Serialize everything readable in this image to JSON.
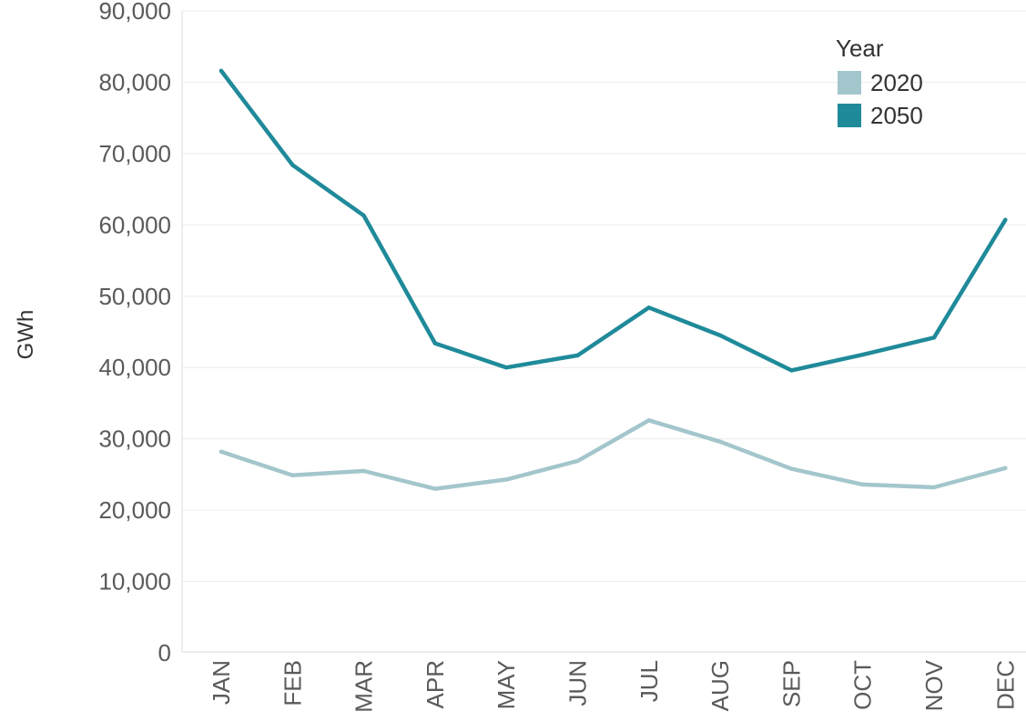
{
  "chart_data": {
    "type": "line",
    "title": "",
    "xlabel": "",
    "ylabel": "GWh",
    "categories": [
      "JAN",
      "FEB",
      "MAR",
      "APR",
      "MAY",
      "JUN",
      "JUL",
      "AUG",
      "SEP",
      "OCT",
      "NOV",
      "DEC"
    ],
    "ylim": [
      0,
      90000
    ],
    "yticks": [
      0,
      10000,
      20000,
      30000,
      40000,
      50000,
      60000,
      70000,
      80000,
      90000
    ],
    "ytick_labels": [
      "0",
      "10,000",
      "20,000",
      "30,000",
      "40,000",
      "50,000",
      "60,000",
      "70,000",
      "80,000",
      "90,000"
    ],
    "grid": true,
    "legend": {
      "title": "Year",
      "position": "top-right"
    },
    "series": [
      {
        "name": "2020",
        "color": "#a3c6cc",
        "values": [
          28200,
          24900,
          25500,
          23000,
          24300,
          26900,
          32600,
          29600,
          25800,
          23600,
          23200,
          25900
        ]
      },
      {
        "name": "2050",
        "color": "#1f8a9a",
        "values": [
          81600,
          68400,
          61300,
          43400,
          40000,
          41700,
          48400,
          44500,
          39600,
          41800,
          44200,
          60700
        ]
      }
    ]
  }
}
